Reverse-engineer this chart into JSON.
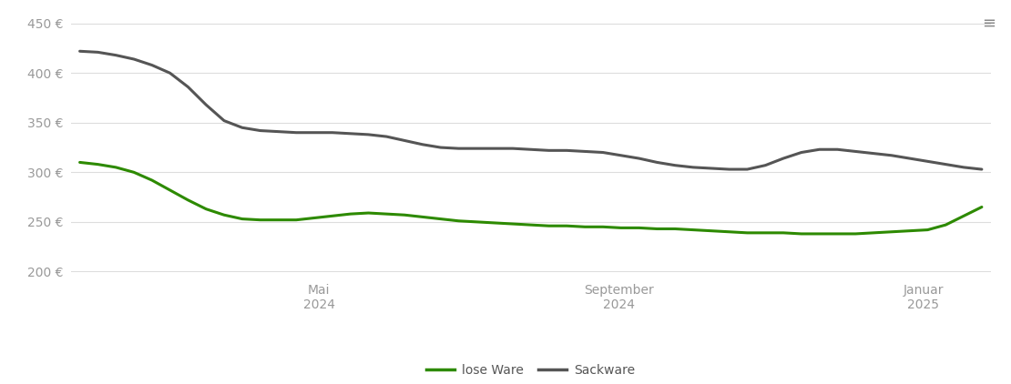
{
  "background_color": "#ffffff",
  "grid_color": "#dddddd",
  "ylim": [
    195,
    462
  ],
  "yticks": [
    200,
    250,
    300,
    350,
    400,
    450
  ],
  "ytick_labels": [
    "200 €",
    "250 €",
    "300 €",
    "350 €",
    "400 €",
    "450 €"
  ],
  "xtick_labels": [
    "Mai\n2024",
    "September\n2024",
    "Januar\n2025"
  ],
  "xtick_positions": [
    0.265,
    0.598,
    0.935
  ],
  "lose_ware_color": "#2d8a00",
  "sackware_color": "#555555",
  "line_width": 2.2,
  "legend_labels": [
    "lose Ware",
    "Sackware"
  ],
  "lose_ware_x": [
    0.0,
    0.02,
    0.04,
    0.06,
    0.08,
    0.1,
    0.12,
    0.14,
    0.16,
    0.18,
    0.2,
    0.22,
    0.24,
    0.26,
    0.28,
    0.3,
    0.32,
    0.34,
    0.36,
    0.38,
    0.4,
    0.42,
    0.44,
    0.46,
    0.48,
    0.5,
    0.52,
    0.54,
    0.56,
    0.58,
    0.6,
    0.62,
    0.64,
    0.66,
    0.68,
    0.7,
    0.72,
    0.74,
    0.76,
    0.78,
    0.8,
    0.82,
    0.84,
    0.86,
    0.88,
    0.9,
    0.92,
    0.94,
    0.96,
    0.98,
    1.0
  ],
  "lose_ware_y": [
    310,
    308,
    305,
    300,
    292,
    282,
    272,
    263,
    257,
    253,
    252,
    252,
    252,
    254,
    256,
    258,
    259,
    258,
    257,
    255,
    253,
    251,
    250,
    249,
    248,
    247,
    246,
    246,
    245,
    245,
    244,
    244,
    243,
    243,
    242,
    241,
    240,
    239,
    239,
    239,
    238,
    238,
    238,
    238,
    239,
    240,
    241,
    242,
    247,
    256,
    265
  ],
  "sackware_x": [
    0.0,
    0.02,
    0.04,
    0.06,
    0.08,
    0.1,
    0.12,
    0.14,
    0.16,
    0.18,
    0.2,
    0.22,
    0.24,
    0.26,
    0.28,
    0.3,
    0.32,
    0.34,
    0.36,
    0.38,
    0.4,
    0.42,
    0.44,
    0.46,
    0.48,
    0.5,
    0.52,
    0.54,
    0.56,
    0.58,
    0.6,
    0.62,
    0.64,
    0.66,
    0.68,
    0.7,
    0.72,
    0.74,
    0.76,
    0.78,
    0.8,
    0.82,
    0.84,
    0.86,
    0.88,
    0.9,
    0.92,
    0.94,
    0.96,
    0.98,
    1.0
  ],
  "sackware_y": [
    422,
    421,
    418,
    414,
    408,
    400,
    386,
    368,
    352,
    345,
    342,
    341,
    340,
    340,
    340,
    339,
    338,
    336,
    332,
    328,
    325,
    324,
    324,
    324,
    324,
    323,
    322,
    322,
    321,
    320,
    317,
    314,
    310,
    307,
    305,
    304,
    303,
    303,
    307,
    314,
    320,
    323,
    323,
    321,
    319,
    317,
    314,
    311,
    308,
    305,
    303
  ]
}
